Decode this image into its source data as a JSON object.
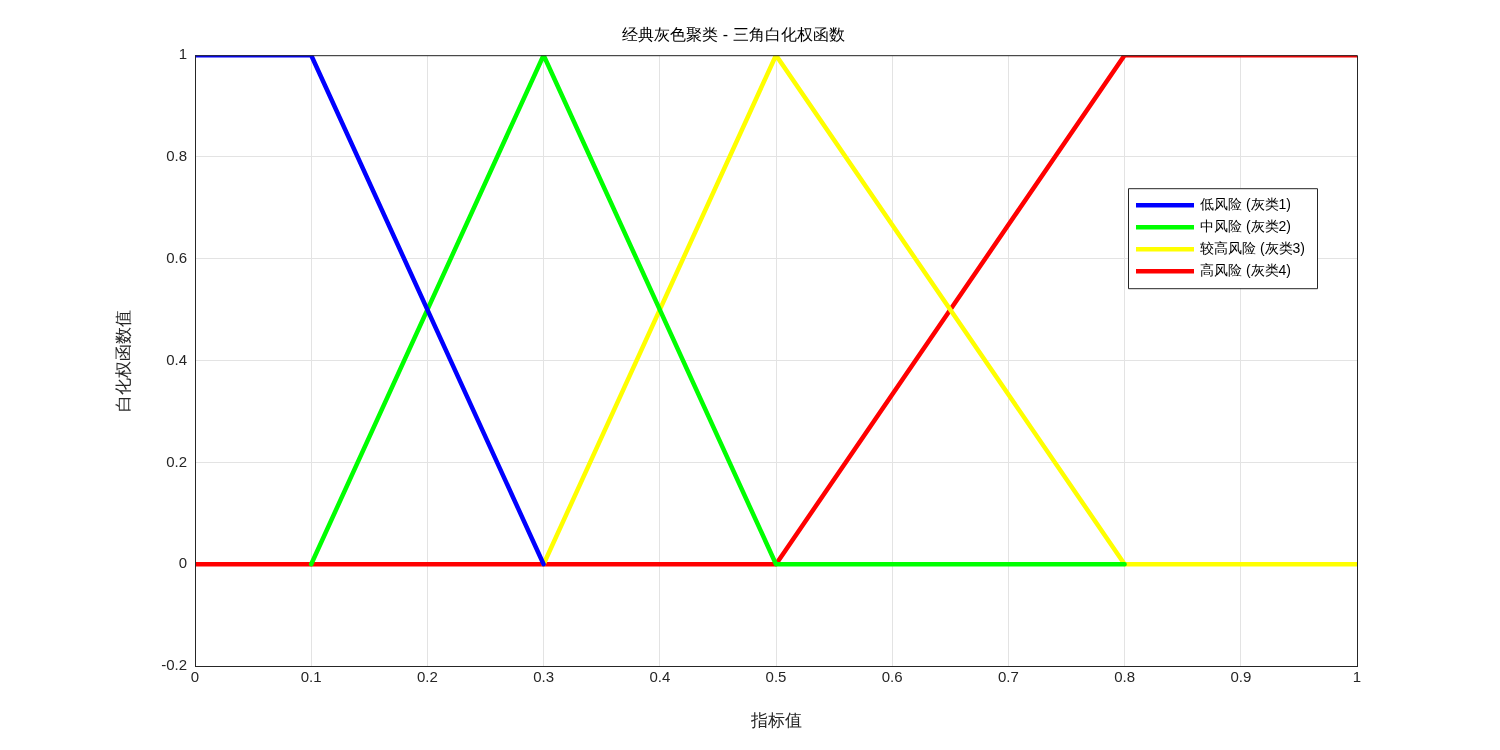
{
  "chart_data": {
    "type": "line",
    "title": "经典灰色聚类 - 三角白化权函数",
    "xlabel": "指标值",
    "ylabel": "白化权函数值",
    "xlim": [
      0,
      1
    ],
    "xticks": [
      0,
      0.1,
      0.2,
      0.3,
      0.4,
      0.5,
      0.6,
      0.7,
      0.8,
      0.9,
      1
    ],
    "ylim": [
      -0.2,
      1
    ],
    "yticks": [
      -0.2,
      0,
      0.2,
      0.4,
      0.6,
      0.8,
      1
    ],
    "grid": true,
    "legend": "top right",
    "marker": "none",
    "line_style": "solid",
    "series": [
      {
        "name": "低风险 (灰类1)",
        "color": "#0000ff",
        "x": [
          0,
          0.1,
          0.3
        ],
        "values": [
          1,
          1,
          0
        ]
      },
      {
        "name": "中风险 (灰类2)",
        "color": "#00ff00",
        "x": [
          0.1,
          0.3,
          0.5,
          0.8
        ],
        "values": [
          0,
          1,
          0,
          0
        ]
      },
      {
        "name": "较高风险 (灰类3)",
        "color": "#ffff00",
        "x": [
          0.3,
          0.5,
          0.8,
          1
        ],
        "values": [
          0,
          1,
          0,
          0
        ]
      },
      {
        "name": "高风险 (灰类4)",
        "color": "#ff0000",
        "x": [
          0,
          0.5,
          0.8,
          1
        ],
        "values": [
          0,
          0,
          1,
          1
        ]
      }
    ]
  }
}
